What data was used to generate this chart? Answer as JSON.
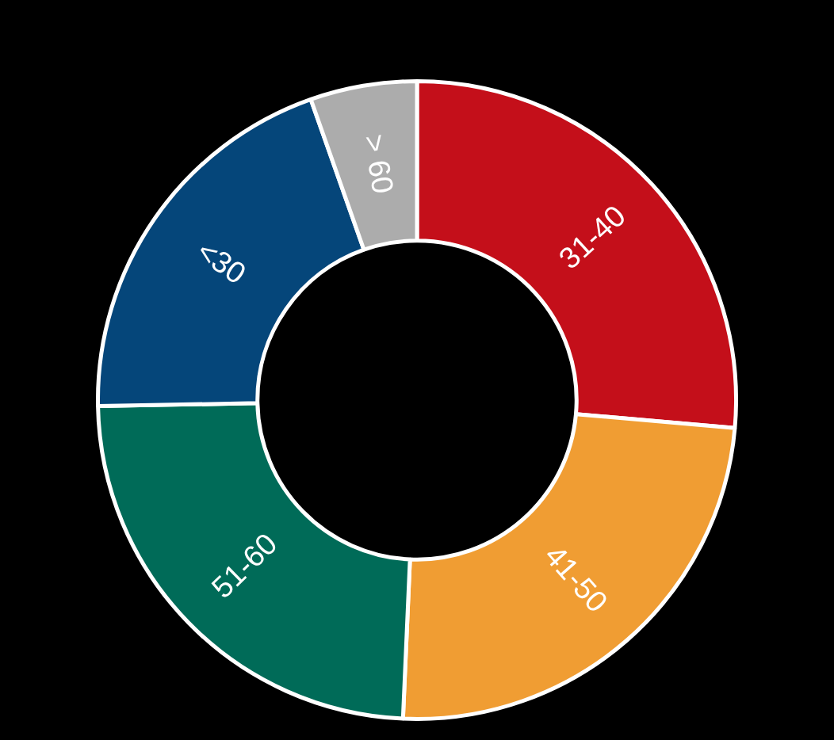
{
  "chart_data": {
    "type": "donut",
    "categories": [
      "31-40",
      "41-50",
      "51-60",
      "<30",
      "> 60"
    ],
    "values": [
      26.4,
      24.3,
      24.0,
      19.9,
      5.4
    ],
    "colors": [
      "#c40f1a",
      "#f09d33",
      "#006b58",
      "#05467a",
      "#acacac"
    ],
    "legend": false
  }
}
